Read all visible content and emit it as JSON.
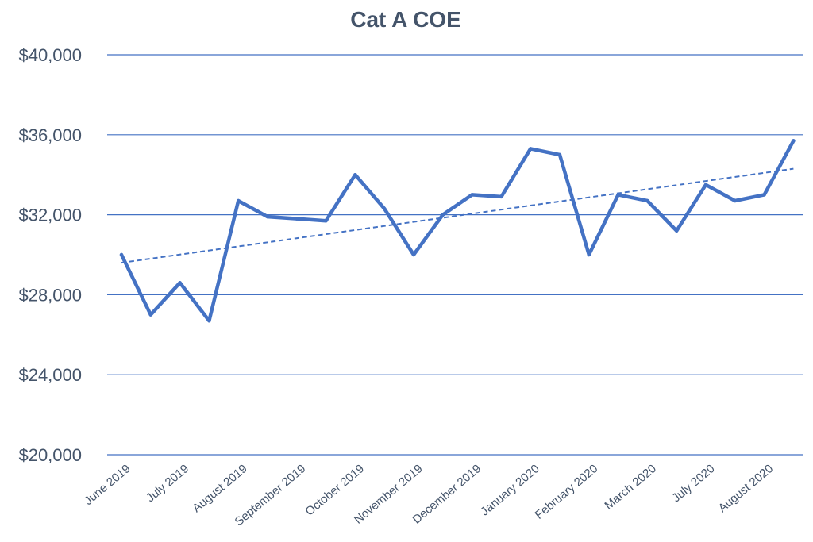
{
  "chart_data": {
    "type": "line",
    "title": "Cat A COE",
    "xlabel": "",
    "ylabel": "",
    "ylim": [
      20000,
      40000
    ],
    "y_ticks": [
      20000,
      24000,
      28000,
      32000,
      36000,
      40000
    ],
    "y_tick_labels": [
      "$20,000",
      "$24,000",
      "$28,000",
      "$32,000",
      "$36,000",
      "$40,000"
    ],
    "x_tick_labels": [
      "June 2019",
      "July 2019",
      "August 2019",
      "September 2019",
      "October 2019",
      "November 2019",
      "December 2019",
      "January 2020",
      "February 2020",
      "March 2020",
      "July 2020",
      "August 2020"
    ],
    "grid": true,
    "legend": "none",
    "colors": {
      "line": "#4472c4",
      "grid": "#4472c4",
      "text": "#44546a"
    },
    "series": [
      {
        "values": [
          30000,
          27000,
          28600,
          26700,
          32700,
          31900,
          31800,
          31700,
          34000,
          32300,
          30000,
          32000,
          33000,
          32900,
          35300,
          35000,
          30000,
          33000,
          32700,
          31200,
          33500,
          32700,
          33000,
          35700
        ]
      }
    ],
    "trendline": {
      "type": "linear",
      "style": "dashed",
      "start": 29600,
      "end": 34300
    }
  }
}
